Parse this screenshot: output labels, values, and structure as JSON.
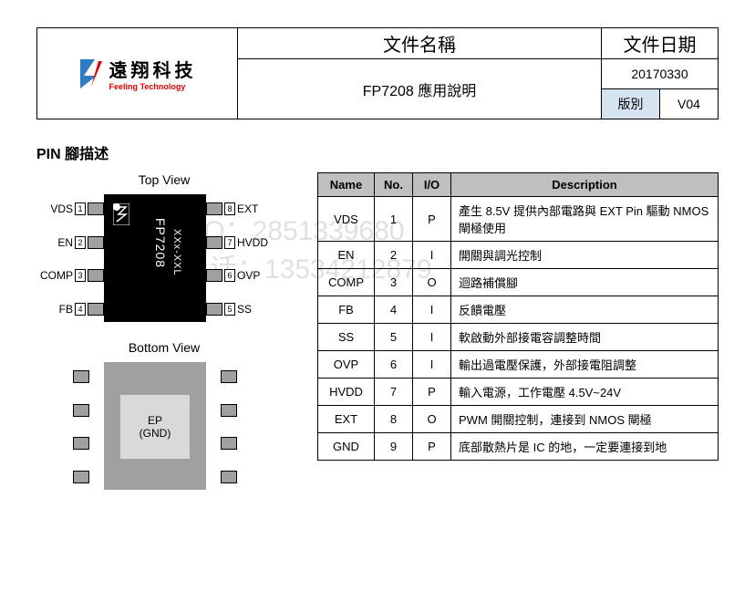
{
  "header": {
    "logo_cn": "遠翔科技",
    "logo_en": "Feeling Technology",
    "title_label": "文件名稱",
    "date_label": "文件日期",
    "doc_title": "FP7208 應用說明",
    "date": "20170330",
    "rev_label": "版別",
    "rev": "V04",
    "colors": {
      "blue_bg": "#d6e4f2",
      "logo_red": "#d00000",
      "logo_blue": "#2e7cc4"
    }
  },
  "section_title": "PIN 腳描述",
  "chip": {
    "top_view_label": "Top View",
    "bottom_view_label": "Bottom View",
    "part_number": "FP7208",
    "lot_code": "XXx-XXL",
    "ep_label": "EP",
    "ep_sub": "(GND)",
    "body_color_top": "#000000",
    "body_color_bottom": "#a0a0a0",
    "ep_color": "#d9d9d9",
    "lead_color": "#a0a0a0",
    "left_pins": [
      {
        "name": "VDS",
        "num": "1"
      },
      {
        "name": "EN",
        "num": "2"
      },
      {
        "name": "COMP",
        "num": "3"
      },
      {
        "name": "FB",
        "num": "4"
      }
    ],
    "right_pins": [
      {
        "name": "EXT",
        "num": "8"
      },
      {
        "name": "HVDD",
        "num": "7"
      },
      {
        "name": "OVP",
        "num": "6"
      },
      {
        "name": "SS",
        "num": "5"
      }
    ]
  },
  "pin_table": {
    "headers": {
      "name": "Name",
      "no": "No.",
      "io": "I/O",
      "desc": "Description"
    },
    "header_bg": "#bfbfbf",
    "rows": [
      {
        "name": "VDS",
        "no": "1",
        "io": "P",
        "desc": "產生 8.5V 提供內部電路與 EXT Pin 驅動 NMOS 閘極使用"
      },
      {
        "name": "EN",
        "no": "2",
        "io": "I",
        "desc": "開關與調光控制"
      },
      {
        "name": "COMP",
        "no": "3",
        "io": "O",
        "desc": "迴路補償腳"
      },
      {
        "name": "FB",
        "no": "4",
        "io": "I",
        "desc": "反饋電壓"
      },
      {
        "name": "SS",
        "no": "5",
        "io": "I",
        "desc": "軟啟動外部接電容調整時間"
      },
      {
        "name": "OVP",
        "no": "6",
        "io": "I",
        "desc": "輸出過電壓保護，外部接電阻調整"
      },
      {
        "name": "HVDD",
        "no": "7",
        "io": "P",
        "desc": "輸入電源，工作電壓 4.5V~24V"
      },
      {
        "name": "EXT",
        "no": "8",
        "io": "O",
        "desc": "PWM 開關控制，連接到 NMOS 閘極"
      },
      {
        "name": "GND",
        "no": "9",
        "io": "P",
        "desc": "底部散熱片是 IC 的地，一定要連接到地"
      }
    ]
  },
  "watermarks": {
    "line1_label": "QQ：",
    "line1_val": "2851339680",
    "line2_label": "电话：",
    "line2_val": "13534212879"
  }
}
